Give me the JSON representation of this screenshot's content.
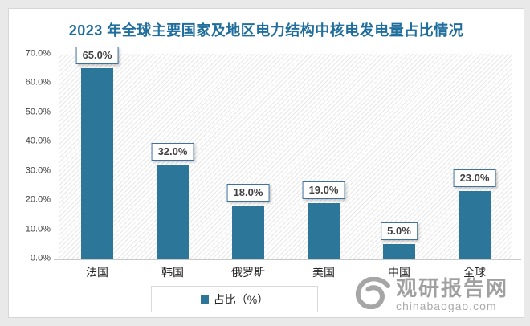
{
  "chart_data": {
    "type": "bar",
    "title": "2023 年全球主要国家及地区电力结构中核电发电量占比情况",
    "categories": [
      "法国",
      "韩国",
      "俄罗斯",
      "美国",
      "中国",
      "全球"
    ],
    "values": [
      65.0,
      32.0,
      18.0,
      19.0,
      5.0,
      23.0
    ],
    "value_labels": [
      "65.0%",
      "32.0%",
      "18.0%",
      "19.0%",
      "5.0%",
      "23.0%"
    ],
    "series_name": "占比（%）",
    "xlabel": "",
    "ylabel": "",
    "ylim": [
      0,
      70
    ],
    "ytick_labels": [
      "0.0%",
      "10.0%",
      "20.0%",
      "30.0%",
      "40.0%",
      "50.0%",
      "60.0%",
      "70.0%"
    ],
    "grid": false,
    "legend_position": "bottom",
    "bar_color": "#2b7699"
  },
  "legend": {
    "label": "占比（%）"
  },
  "watermark": {
    "site_name": "观研报告网",
    "site_url": "chinabaogao.com"
  },
  "colors": {
    "title": "#1f6e9c",
    "bar": "#2b7699",
    "label_box_border": "#41719c",
    "axis_line": "#c9c9c9",
    "watermark_gray": "#a0a0a0"
  }
}
